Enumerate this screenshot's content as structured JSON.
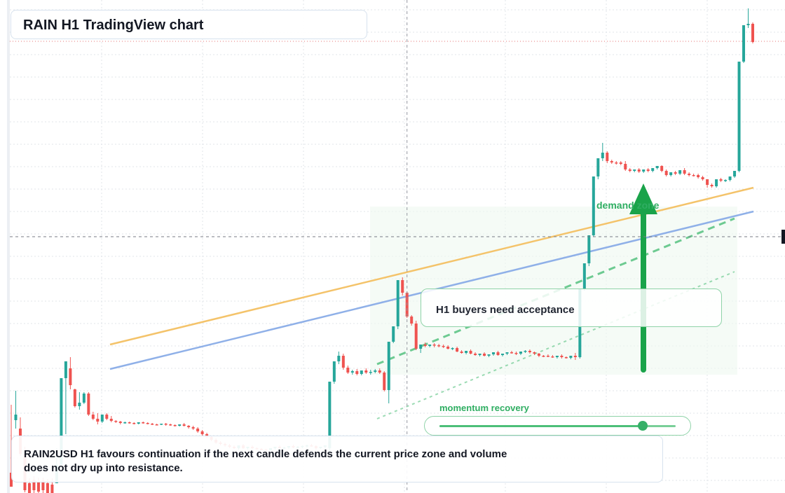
{
  "header": {
    "title": "RAIN H1 TradingView chart"
  },
  "annotations": {
    "callout": "H1 buyers need acceptance",
    "demand_zone": "demand zone",
    "momentum": {
      "label": "momentum recovery",
      "level": 0.86
    },
    "summary": "RAIN2USD H1 favours continuation if the next candle defends the current price zone and volume does not dry up into resistance."
  },
  "colors": {
    "up": "#26a69a",
    "down": "#ef5350",
    "ma_orange": "#f4c36a",
    "ma_blue": "#8fb0e8",
    "accent_green": "#1aa34a",
    "zone": "#eef8f0",
    "grid": "#e1e4ea"
  },
  "chart_data": {
    "type": "candlestick",
    "symbol": "RAIN2USD",
    "timeframe": "H1",
    "title": "RAIN H1 TradingView chart",
    "xlabel": "",
    "ylabel": "",
    "ylim": [
      0,
      704
    ],
    "grid": true,
    "crosshair": {
      "index": 87,
      "price": 338
    },
    "price_line": 59,
    "candles": [
      [
        675,
        578,
        695,
        600
      ],
      [
        600,
        558,
        592,
        612
      ],
      [
        612,
        596,
        648,
        651
      ],
      [
        648,
        638,
        700,
        703
      ],
      [
        690,
        683,
        704,
        704
      ],
      [
        685,
        680,
        700,
        704
      ],
      [
        688,
        682,
        702,
        704
      ],
      [
        686,
        682,
        700,
        704
      ],
      [
        690,
        684,
        704,
        704
      ],
      [
        692,
        683,
        704,
        704
      ],
      [
        690,
        640,
        664,
        690
      ],
      [
        664,
        600,
        540,
        604
      ],
      [
        540,
        520,
        516,
        620
      ],
      [
        526,
        510,
        550,
        556
      ],
      [
        556,
        555,
        580,
        582
      ],
      [
        580,
        560,
        575,
        585
      ],
      [
        575,
        560,
        562,
        577
      ],
      [
        562,
        560,
        592,
        594
      ],
      [
        592,
        588,
        598,
        600
      ],
      [
        598,
        590,
        602,
        606
      ],
      [
        602,
        596,
        592,
        604
      ],
      [
        592,
        590,
        598,
        600
      ],
      [
        598,
        594,
        601,
        603
      ],
      [
        601,
        600,
        602,
        604
      ],
      [
        602,
        601,
        604,
        606
      ],
      [
        604,
        602,
        603,
        605
      ],
      [
        603,
        602,
        604,
        605
      ],
      [
        604,
        603,
        605,
        606
      ],
      [
        605,
        604,
        603,
        606
      ],
      [
        603,
        602,
        604,
        605
      ],
      [
        604,
        603,
        605,
        606
      ],
      [
        605,
        604,
        606,
        607
      ],
      [
        606,
        605,
        606,
        607
      ],
      [
        606,
        605,
        605,
        607
      ],
      [
        605,
        604,
        606,
        608
      ],
      [
        606,
        605,
        607,
        608
      ],
      [
        607,
        606,
        608,
        609
      ],
      [
        608,
        607,
        606,
        609
      ],
      [
        606,
        604,
        608,
        609
      ],
      [
        608,
        607,
        610,
        612
      ],
      [
        610,
        608,
        612,
        614
      ],
      [
        612,
        610,
        616,
        618
      ],
      [
        616,
        614,
        620,
        622
      ],
      [
        620,
        618,
        624,
        626
      ],
      [
        624,
        622,
        628,
        630
      ],
      [
        628,
        626,
        632,
        634
      ],
      [
        632,
        630,
        634,
        636
      ],
      [
        634,
        632,
        636,
        638
      ],
      [
        636,
        634,
        638,
        640
      ],
      [
        638,
        636,
        640,
        641
      ],
      [
        640,
        638,
        636,
        642
      ],
      [
        636,
        634,
        640,
        641
      ],
      [
        640,
        638,
        638,
        642
      ],
      [
        638,
        636,
        640,
        641
      ],
      [
        640,
        639,
        641,
        642
      ],
      [
        641,
        640,
        642,
        643
      ],
      [
        642,
        641,
        643,
        644
      ],
      [
        643,
        642,
        640,
        644
      ],
      [
        640,
        638,
        638,
        642
      ],
      [
        638,
        636,
        640,
        641
      ],
      [
        640,
        638,
        639,
        641
      ],
      [
        639,
        637,
        637,
        641
      ],
      [
        637,
        635,
        639,
        640
      ],
      [
        639,
        637,
        638,
        640
      ],
      [
        638,
        636,
        637,
        640
      ],
      [
        637,
        635,
        636,
        639
      ],
      [
        636,
        634,
        637,
        638
      ],
      [
        637,
        636,
        640,
        642
      ],
      [
        640,
        638,
        638,
        641
      ],
      [
        638,
        636,
        636,
        640
      ],
      [
        640,
        600,
        545,
        650
      ],
      [
        545,
        520,
        516,
        548
      ],
      [
        516,
        502,
        508,
        520
      ],
      [
        508,
        505,
        525,
        528
      ],
      [
        525,
        522,
        532,
        534
      ],
      [
        532,
        528,
        530,
        535
      ],
      [
        530,
        527,
        534,
        536
      ],
      [
        534,
        531,
        529,
        536
      ],
      [
        529,
        526,
        532,
        534
      ],
      [
        532,
        528,
        531,
        535
      ],
      [
        531,
        527,
        529,
        533
      ],
      [
        529,
        526,
        532,
        534
      ],
      [
        532,
        530,
        557,
        559
      ],
      [
        557,
        560,
        488,
        576
      ],
      [
        488,
        486,
        466,
        490
      ],
      [
        466,
        470,
        400,
        470
      ],
      [
        400,
        396,
        418,
        422
      ],
      [
        418,
        416,
        452,
        454
      ],
      [
        452,
        450,
        462,
        465
      ],
      [
        462,
        458,
        498,
        500
      ],
      [
        498,
        494,
        492,
        504
      ],
      [
        492,
        489,
        494,
        496
      ],
      [
        494,
        492,
        492,
        496
      ],
      [
        492,
        490,
        493,
        496
      ],
      [
        493,
        491,
        494,
        496
      ],
      [
        494,
        492,
        495,
        497
      ],
      [
        495,
        493,
        498,
        499
      ],
      [
        498,
        496,
        497,
        500
      ],
      [
        497,
        495,
        502,
        503
      ],
      [
        502,
        500,
        504,
        505
      ],
      [
        504,
        502,
        501,
        506
      ],
      [
        501,
        499,
        505,
        506
      ],
      [
        505,
        503,
        507,
        508
      ],
      [
        507,
        505,
        505,
        509
      ],
      [
        505,
        503,
        508,
        509
      ],
      [
        508,
        506,
        506,
        510
      ],
      [
        506,
        504,
        503,
        508
      ],
      [
        503,
        501,
        507,
        508
      ],
      [
        507,
        505,
        505,
        509
      ],
      [
        505,
        503,
        503,
        507
      ],
      [
        503,
        501,
        504,
        505
      ],
      [
        504,
        502,
        505,
        507
      ],
      [
        505,
        503,
        502,
        507
      ],
      [
        502,
        500,
        501,
        504
      ],
      [
        501,
        499,
        503,
        505
      ],
      [
        503,
        502,
        505,
        507
      ],
      [
        505,
        504,
        508,
        510
      ],
      [
        508,
        507,
        508,
        510
      ],
      [
        508,
        506,
        509,
        510
      ],
      [
        509,
        507,
        510,
        511
      ],
      [
        510,
        509,
        508,
        512
      ],
      [
        508,
        506,
        510,
        512
      ],
      [
        510,
        509,
        511,
        512
      ],
      [
        511,
        508,
        508,
        513
      ],
      [
        508,
        504,
        510,
        514
      ],
      [
        510,
        500,
        412,
        512
      ],
      [
        412,
        405,
        376,
        415
      ],
      [
        376,
        372,
        336,
        380
      ],
      [
        336,
        333,
        252,
        338
      ],
      [
        252,
        248,
        226,
        256
      ],
      [
        226,
        204,
        218,
        230
      ],
      [
        218,
        216,
        230,
        233
      ],
      [
        230,
        228,
        232,
        234
      ],
      [
        232,
        230,
        232,
        235
      ],
      [
        232,
        230,
        234,
        236
      ],
      [
        234,
        230,
        242,
        244
      ],
      [
        242,
        240,
        244,
        246
      ],
      [
        244,
        242,
        242,
        246
      ],
      [
        242,
        240,
        245,
        247
      ],
      [
        245,
        243,
        242,
        247
      ],
      [
        242,
        240,
        244,
        246
      ],
      [
        244,
        240,
        240,
        246
      ],
      [
        240,
        238,
        237,
        242
      ],
      [
        237,
        236,
        244,
        246
      ],
      [
        244,
        242,
        250,
        252
      ],
      [
        250,
        248,
        246,
        252
      ],
      [
        246,
        244,
        248,
        250
      ],
      [
        248,
        246,
        243,
        250
      ],
      [
        243,
        240,
        248,
        250
      ],
      [
        248,
        246,
        250,
        252
      ],
      [
        250,
        248,
        250,
        252
      ],
      [
        250,
        248,
        253,
        255
      ],
      [
        253,
        251,
        256,
        258
      ],
      [
        256,
        262,
        264,
        268
      ],
      [
        264,
        262,
        266,
        268
      ],
      [
        266,
        256,
        256,
        268
      ],
      [
        256,
        254,
        258,
        260
      ],
      [
        258,
        256,
        257,
        260
      ],
      [
        257,
        254,
        252,
        259
      ],
      [
        252,
        246,
        244,
        254
      ],
      [
        244,
        232,
        88,
        246
      ],
      [
        88,
        84,
        36,
        90
      ],
      [
        36,
        12,
        34,
        40
      ],
      [
        34,
        32,
        60,
        62
      ]
    ],
    "moving_averages": [
      {
        "color": "orange",
        "from": [
          157,
          492
        ],
        "to": [
          1075,
          268
        ]
      },
      {
        "color": "blue",
        "from": [
          157,
          527
        ],
        "to": [
          1075,
          302
        ]
      }
    ],
    "trend_lines": [
      {
        "style": "dashed",
        "from": [
          538,
          520
        ],
        "to": [
          1048,
          312
        ]
      },
      {
        "style": "dotted",
        "from": [
          538,
          598
        ],
        "to": [
          1048,
          388
        ]
      }
    ],
    "demand_zone": {
      "from": [
        528,
        295
      ],
      "to": [
        1052,
        535
      ]
    },
    "arrow": {
      "direction": "up",
      "from": [
        918,
        528
      ],
      "to": [
        918,
        262
      ]
    }
  }
}
